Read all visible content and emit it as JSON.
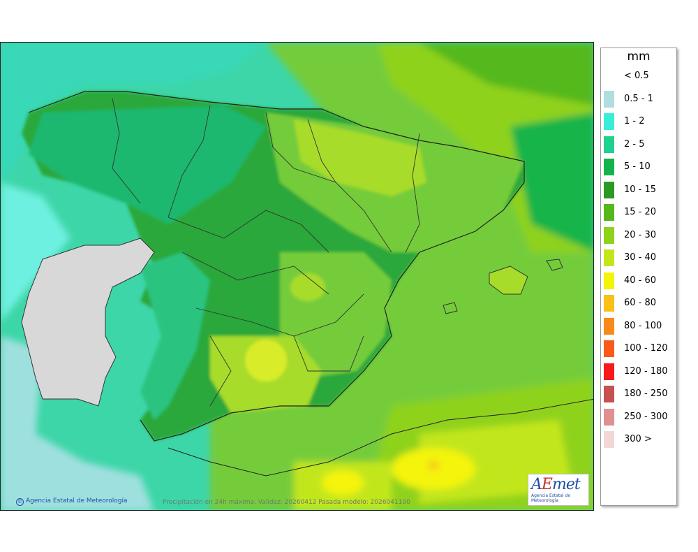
{
  "legend": {
    "unit": "mm",
    "items": [
      {
        "label": "< 0.5",
        "color": ""
      },
      {
        "label": "0.5 - 1",
        "color": "#b0dde0"
      },
      {
        "label": "1 - 2",
        "color": "#38eed8"
      },
      {
        "label": "2 - 5",
        "color": "#1fd18e"
      },
      {
        "label": "5 - 10",
        "color": "#12b44a"
      },
      {
        "label": "10 - 15",
        "color": "#2a9a22"
      },
      {
        "label": "15 - 20",
        "color": "#55b81a"
      },
      {
        "label": "20 - 30",
        "color": "#8fd21a"
      },
      {
        "label": "30 - 40",
        "color": "#c2e61a"
      },
      {
        "label": "40 - 60",
        "color": "#f4f40a"
      },
      {
        "label": "60 - 80",
        "color": "#f9c01a"
      },
      {
        "label": "80 - 100",
        "color": "#f98a1a"
      },
      {
        "label": "100 - 120",
        "color": "#f95a1a"
      },
      {
        "label": "120 - 180",
        "color": "#f81a1a"
      },
      {
        "label": "180 - 250",
        "color": "#c85050"
      },
      {
        "label": "250 - 300",
        "color": "#e09090"
      },
      {
        "label": "300 >",
        "color": "#f3d6d6"
      }
    ]
  },
  "map": {
    "credit": "Agencia Estatal de Meteorología",
    "credit_icon": "copyright-icon",
    "caption": "Precipitación en 24h máxima. Validez: 20260412 Pasada modelo: 2026041100",
    "logo": {
      "text": "AEmet",
      "subtitle": "Agencia Estatal de Meteorología"
    }
  }
}
